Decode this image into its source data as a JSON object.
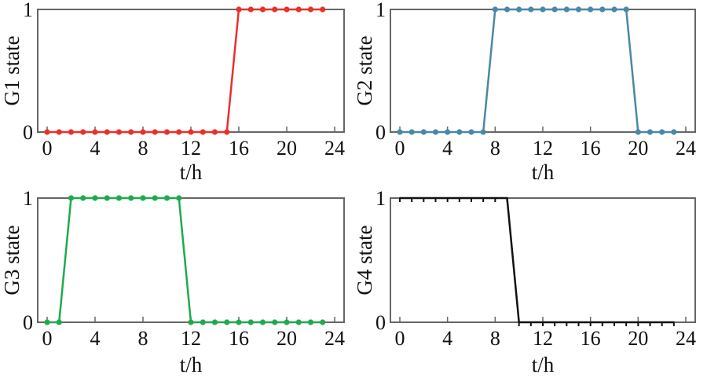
{
  "chart_data": [
    {
      "type": "line",
      "color": "#e8312a",
      "ylabel": "G1 state",
      "xlabel": "t/h",
      "xlim": [
        0,
        24
      ],
      "ylim": [
        0,
        1
      ],
      "xticks": [
        0,
        4,
        8,
        12,
        16,
        20,
        24
      ],
      "yticks": [
        0,
        1
      ],
      "marker": "dot",
      "series": [
        {
          "x": [
            0,
            1,
            2,
            3,
            4,
            5,
            6,
            7,
            8,
            9,
            10,
            11,
            12,
            13,
            14,
            15,
            16,
            17,
            18,
            19,
            20,
            21,
            22,
            23
          ],
          "y": [
            0,
            0,
            0,
            0,
            0,
            0,
            0,
            0,
            0,
            0,
            0,
            0,
            0,
            0,
            0,
            0,
            1,
            1,
            1,
            1,
            1,
            1,
            1,
            1
          ]
        }
      ]
    },
    {
      "type": "line",
      "color": "#4a87a8",
      "ylabel": "G2 state",
      "xlabel": "t/h",
      "xlim": [
        0,
        24
      ],
      "ylim": [
        0,
        1
      ],
      "xticks": [
        0,
        4,
        8,
        12,
        16,
        20,
        24
      ],
      "yticks": [
        0,
        1
      ],
      "marker": "dot",
      "series": [
        {
          "x": [
            0,
            1,
            2,
            3,
            4,
            5,
            6,
            7,
            8,
            9,
            10,
            11,
            12,
            13,
            14,
            15,
            16,
            17,
            18,
            19,
            20,
            21,
            22,
            23
          ],
          "y": [
            0,
            0,
            0,
            0,
            0,
            0,
            0,
            0,
            1,
            1,
            1,
            1,
            1,
            1,
            1,
            1,
            1,
            1,
            1,
            1,
            0,
            0,
            0,
            0
          ]
        }
      ]
    },
    {
      "type": "line",
      "color": "#1faa4b",
      "ylabel": "G3 state",
      "xlabel": "t/h",
      "xlim": [
        0,
        24
      ],
      "ylim": [
        0,
        1
      ],
      "xticks": [
        0,
        4,
        8,
        12,
        16,
        20,
        24
      ],
      "yticks": [
        0,
        1
      ],
      "marker": "dot",
      "series": [
        {
          "x": [
            0,
            1,
            2,
            3,
            4,
            5,
            6,
            7,
            8,
            9,
            10,
            11,
            12,
            13,
            14,
            15,
            16,
            17,
            18,
            19,
            20,
            21,
            22,
            23
          ],
          "y": [
            0,
            0,
            1,
            1,
            1,
            1,
            1,
            1,
            1,
            1,
            1,
            1,
            0,
            0,
            0,
            0,
            0,
            0,
            0,
            0,
            0,
            0,
            0,
            0
          ]
        }
      ]
    },
    {
      "type": "line",
      "color": "#111111",
      "ylabel": "G4 state",
      "xlabel": "t/h",
      "xlim": [
        0,
        24
      ],
      "ylim": [
        0,
        1
      ],
      "xticks": [
        0,
        4,
        8,
        12,
        16,
        20,
        24
      ],
      "yticks": [
        0,
        1
      ],
      "marker": "tick",
      "series": [
        {
          "x": [
            0,
            1,
            2,
            3,
            4,
            5,
            6,
            7,
            8,
            9,
            10,
            11,
            12,
            13,
            14,
            15,
            16,
            17,
            18,
            19,
            20,
            21,
            22,
            23
          ],
          "y": [
            1,
            1,
            1,
            1,
            1,
            1,
            1,
            1,
            1,
            1,
            0,
            0,
            0,
            0,
            0,
            0,
            0,
            0,
            0,
            0,
            0,
            0,
            0,
            0
          ]
        }
      ]
    }
  ]
}
